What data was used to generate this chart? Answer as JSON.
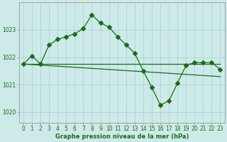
{
  "title": "",
  "xlabel": "Graphe pression niveau de la mer (hPa)",
  "background_color": "#ceeae8",
  "grid_color": "#aad4d0",
  "line_color": "#1a6b1a",
  "ylim": [
    1019.6,
    1024.0
  ],
  "xlim": [
    -0.5,
    23.5
  ],
  "yticks": [
    1020,
    1021,
    1022,
    1023
  ],
  "xticks": [
    0,
    1,
    2,
    3,
    4,
    5,
    6,
    7,
    8,
    9,
    10,
    11,
    12,
    13,
    14,
    15,
    16,
    17,
    18,
    19,
    20,
    21,
    22,
    23
  ],
  "series1": [
    1021.75,
    1022.05,
    1021.75,
    1022.45,
    1022.65,
    1022.75,
    1022.85,
    1023.05,
    1023.55,
    1023.25,
    1023.1,
    1022.75,
    1022.45,
    1022.15,
    1021.5,
    1020.9,
    1020.25,
    1020.4,
    1021.05,
    1021.7,
    1021.8,
    1021.8,
    1021.8,
    1021.55
  ],
  "series2": [
    1021.75,
    1021.75,
    1021.75,
    1021.75,
    1021.75,
    1021.75,
    1021.75,
    1021.75,
    1021.75,
    1021.75,
    1021.75,
    1021.75,
    1021.75,
    1021.75,
    1021.75,
    1021.75,
    1021.75,
    1021.75,
    1021.75,
    1021.75,
    1021.75,
    1021.75,
    1021.75,
    1021.75
  ],
  "series3": [
    1021.75,
    1021.73,
    1021.71,
    1021.69,
    1021.67,
    1021.65,
    1021.63,
    1021.61,
    1021.59,
    1021.57,
    1021.55,
    1021.53,
    1021.51,
    1021.49,
    1021.47,
    1021.45,
    1021.43,
    1021.41,
    1021.39,
    1021.37,
    1021.35,
    1021.33,
    1021.31,
    1021.29
  ],
  "markersize": 3.0,
  "linewidth": 0.9,
  "tick_fontsize": 5.5,
  "xlabel_fontsize": 6.0
}
